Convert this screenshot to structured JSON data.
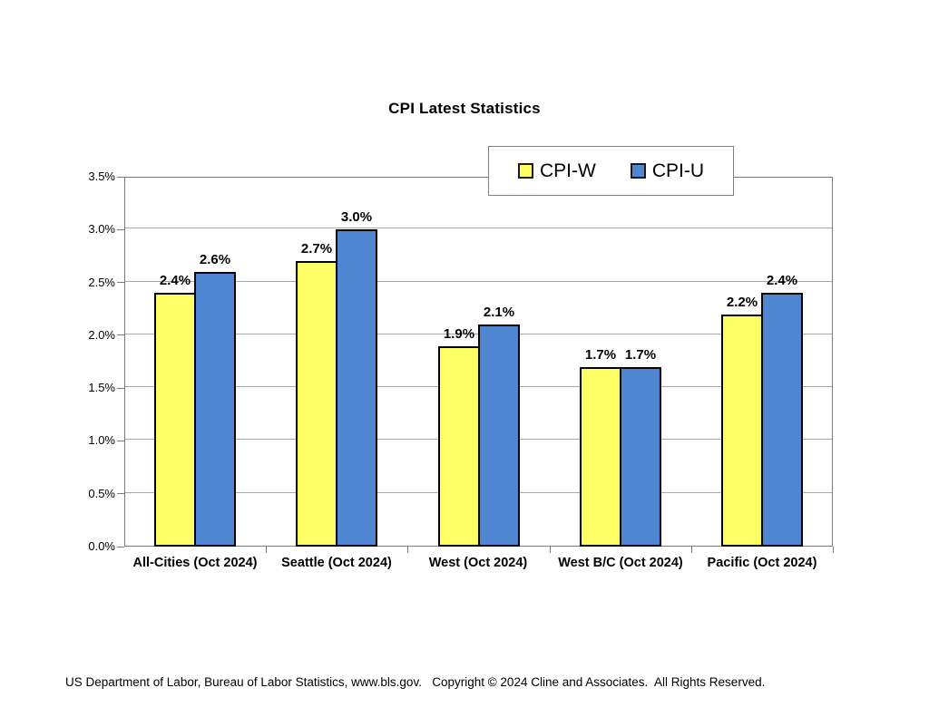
{
  "page": {
    "background": "#ffffff"
  },
  "chart_data": {
    "type": "bar",
    "title": "CPI Latest Statistics",
    "categories": [
      "All-Cities (Oct 2024)",
      "Seattle (Oct 2024)",
      "West (Oct 2024)",
      "West B/C (Oct 2024)",
      "Pacific (Oct 2024)"
    ],
    "series": [
      {
        "name": "CPI-W",
        "color": "#ffff66",
        "values": [
          2.4,
          2.7,
          1.9,
          1.7,
          2.2
        ]
      },
      {
        "name": "CPI-U",
        "color": "#4e86d2",
        "values": [
          2.6,
          3.0,
          2.1,
          1.7,
          2.4
        ]
      }
    ],
    "value_labels": [
      [
        "2.4%",
        "2.7%",
        "1.9%",
        "1.7%",
        "2.2%"
      ],
      [
        "2.6%",
        "3.0%",
        "2.1%",
        "1.7%",
        "2.4%"
      ]
    ],
    "xlabel": "",
    "ylabel": "",
    "ylim": [
      0,
      3.5
    ],
    "ytick_step": 0.5,
    "ytick_labels": [
      "0.0%",
      "0.5%",
      "1.0%",
      "1.5%",
      "2.0%",
      "2.5%",
      "3.0%",
      "3.5%"
    ],
    "grid": true,
    "legend_position": "top-right-inset",
    "bar_border_color": "#000000",
    "gridline_color": "#a8a8a8",
    "plot_border_color": "#7a7a7a"
  },
  "footer": {
    "text": "US Department of Labor, Bureau of Labor Statistics, www.bls.gov.   Copyright © 2024 Cline and Associates.  All Rights Reserved."
  }
}
